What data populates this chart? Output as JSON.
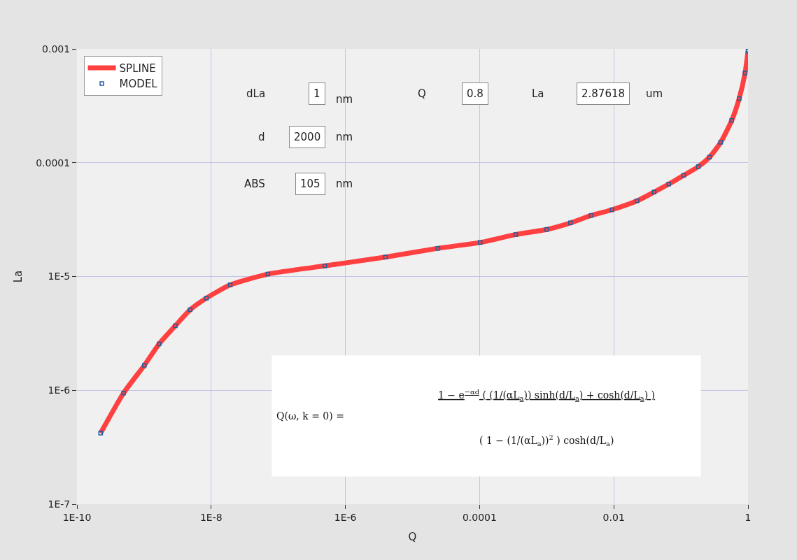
{
  "chart_data": {
    "type": "line",
    "xlabel": "Q",
    "ylabel": "La",
    "log": "xy",
    "x": [
      2.25e-10,
      4.95e-10,
      1.01e-09,
      1.67e-09,
      2.92e-09,
      4.86e-09,
      8.5e-09,
      1.92e-08,
      7e-08,
      4.94e-07,
      3.96e-06,
      2.4e-05,
      0.000102,
      0.000346,
      0.001,
      0.00226,
      0.0046,
      0.0094,
      0.0222,
      0.0398,
      0.066,
      0.11,
      0.182,
      0.267,
      0.391,
      0.571,
      0.738,
      0.904,
      1.0
    ],
    "series": [
      {
        "name": "MODEL",
        "type": "scatter",
        "marker": "square",
        "color": "#1f5fa0",
        "values": [
          4.2e-07,
          9.46e-07,
          1.66e-06,
          2.55e-06,
          3.69e-06,
          5.1e-06,
          6.46e-06,
          8.43e-06,
          1.05e-05,
          1.24e-05,
          1.48e-05,
          1.77e-05,
          1.99e-05,
          2.34e-05,
          2.59e-05,
          2.96e-05,
          3.44e-05,
          3.86e-05,
          4.62e-05,
          5.52e-05,
          6.49e-05,
          7.74e-05,
          9.25e-05,
          0.000112,
          0.000151,
          0.000235,
          0.000366,
          0.000614,
          0.000955
        ]
      },
      {
        "name": "SPLINE",
        "type": "line",
        "line_style": "solid",
        "color": "#ff4040",
        "values": [
          4.2e-07,
          9.46e-07,
          1.66e-06,
          2.55e-06,
          3.69e-06,
          5.1e-06,
          6.46e-06,
          8.43e-06,
          1.05e-05,
          1.24e-05,
          1.48e-05,
          1.77e-05,
          1.99e-05,
          2.34e-05,
          2.59e-05,
          2.96e-05,
          3.44e-05,
          3.86e-05,
          4.62e-05,
          5.52e-05,
          6.49e-05,
          7.74e-05,
          9.25e-05,
          0.000112,
          0.000151,
          0.000235,
          0.000366,
          0.000614,
          0.000955
        ]
      }
    ],
    "xlim": [
      1e-10,
      1
    ],
    "xticks": [
      {
        "value": 1e-10,
        "label": "1E-10"
      },
      {
        "value": 1e-08,
        "label": "1E-8"
      },
      {
        "value": 1e-06,
        "label": "1E-6"
      },
      0.0001,
      0.01,
      1
    ],
    "ylim": [
      1e-07,
      0.001
    ],
    "yticks": [
      {
        "value": 1e-07,
        "label": "1E-7"
      },
      {
        "value": 1e-06,
        "label": "1E-6"
      },
      {
        "value": 1e-05,
        "label": "1E-5"
      },
      0.0001,
      0.001
    ],
    "grid": true,
    "legend": "top left",
    "annotations": [
      "dLa",
      "1",
      "nm",
      "d",
      "2000",
      "nm",
      "ABS",
      "105",
      "nm",
      "Q",
      "0.8",
      "La",
      "2.87618",
      "um",
      "1 − e$^{−αd}$ ( (1/(αL$_{a}$)) sinh(d/L$_{a}$) + cosh(d/L$_{a}$) )",
      "Q(ω, k = 0) =",
      "( 1 − (1/(αL$_{a}$))$^{2}$ ) cosh(d/L$_{a}$)"
    ]
  }
}
